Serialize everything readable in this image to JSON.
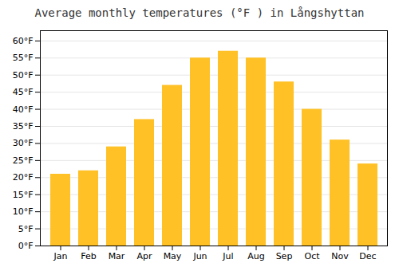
{
  "chart_data": {
    "type": "bar",
    "title": "Average monthly temperatures (°F ) in Långshyttan",
    "categories": [
      "Jan",
      "Feb",
      "Mar",
      "Apr",
      "May",
      "Jun",
      "Jul",
      "Aug",
      "Sep",
      "Oct",
      "Nov",
      "Dec"
    ],
    "values": [
      21,
      22,
      29,
      37,
      47,
      55,
      57,
      55,
      48,
      40,
      31,
      24
    ],
    "color": "#FFC125",
    "ylim": [
      0,
      63
    ],
    "yticks": [
      {
        "value": 0,
        "label": "0°F"
      },
      {
        "value": 5,
        "label": "5°F"
      },
      {
        "value": 10,
        "label": "10°F"
      },
      {
        "value": 15,
        "label": "15°F"
      },
      {
        "value": 20,
        "label": "20°F"
      },
      {
        "value": 25,
        "label": "25°F"
      },
      {
        "value": 30,
        "label": "30°F"
      },
      {
        "value": 35,
        "label": "35°F"
      },
      {
        "value": 40,
        "label": "40°F"
      },
      {
        "value": 45,
        "label": "45°F"
      },
      {
        "value": 50,
        "label": "50°F"
      },
      {
        "value": 55,
        "label": "55°F"
      },
      {
        "value": 60,
        "label": "60°F"
      }
    ],
    "grid": true
  }
}
